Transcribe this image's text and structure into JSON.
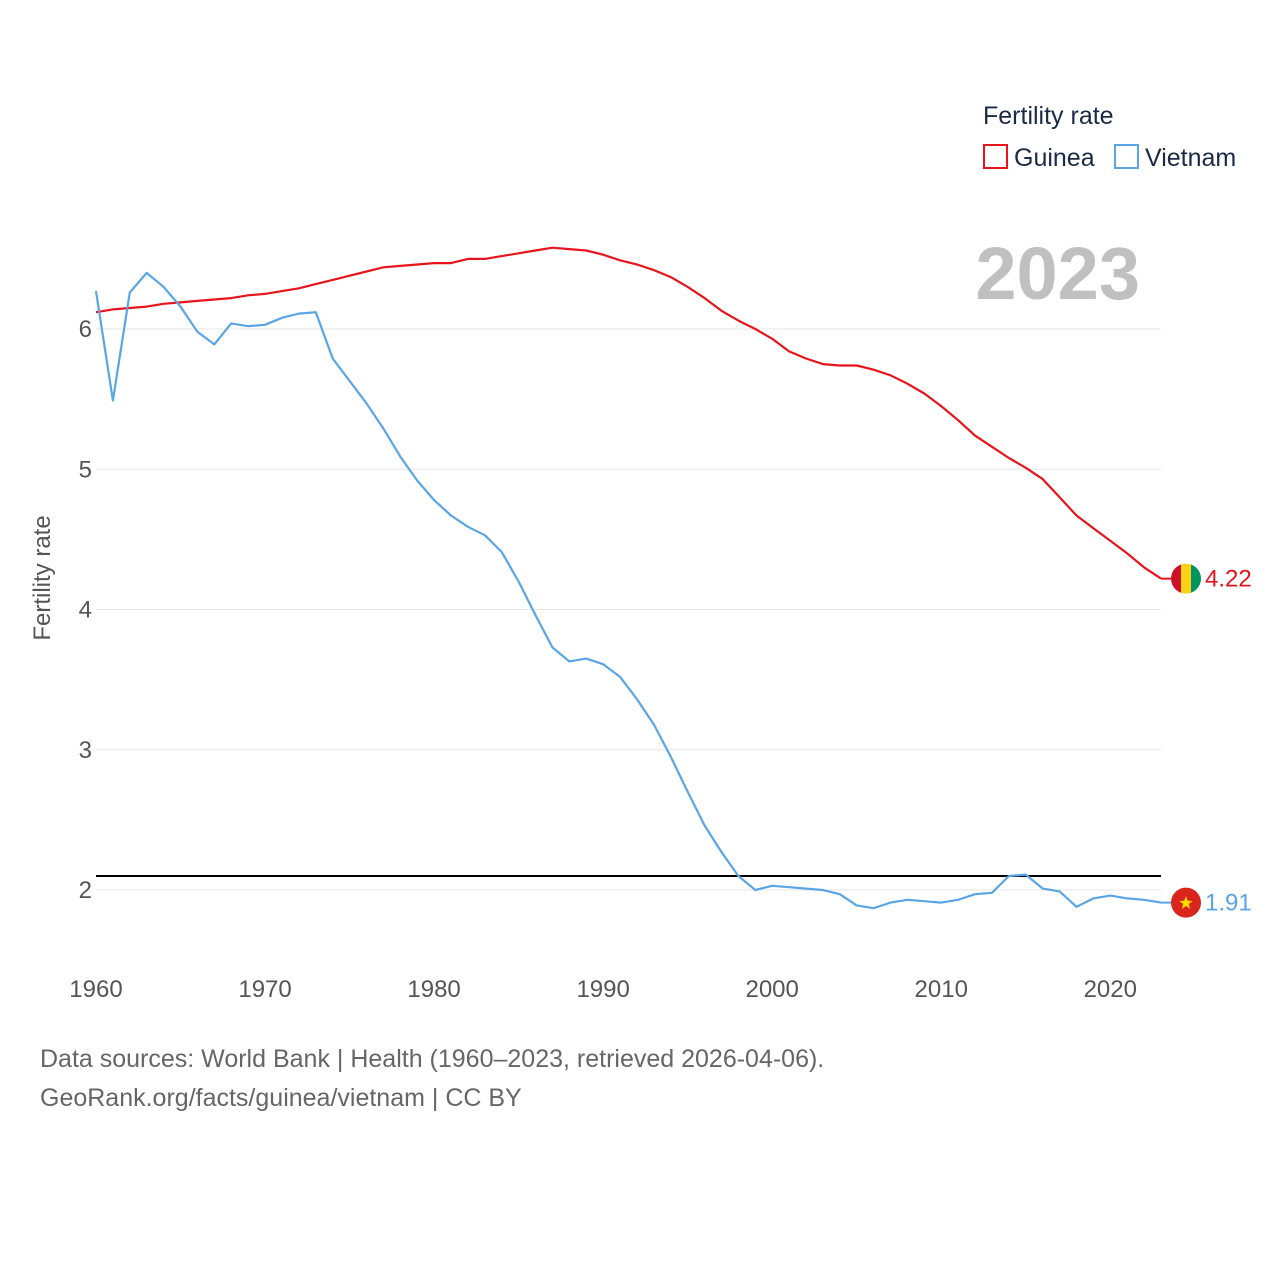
{
  "chart_data": {
    "type": "line",
    "title": "",
    "xlabel": "",
    "ylabel": "Fertility rate",
    "xlim": [
      1960,
      2023
    ],
    "ylim": [
      1.5,
      6.9
    ],
    "x_ticks": [
      "1960",
      "1970",
      "1980",
      "1990",
      "2000",
      "2010",
      "2020"
    ],
    "y_ticks": [
      "2",
      "3",
      "4",
      "5",
      "6"
    ],
    "grid": true,
    "legend": {
      "title": "Fertility rate",
      "position": "top-right"
    },
    "year_label": "2023",
    "reference_line": {
      "value": 2.1
    },
    "x": [
      1960,
      1961,
      1962,
      1963,
      1964,
      1965,
      1966,
      1967,
      1968,
      1969,
      1970,
      1971,
      1972,
      1973,
      1974,
      1975,
      1976,
      1977,
      1978,
      1979,
      1980,
      1981,
      1982,
      1983,
      1984,
      1985,
      1986,
      1987,
      1988,
      1989,
      1990,
      1991,
      1992,
      1993,
      1994,
      1995,
      1996,
      1997,
      1998,
      1999,
      2000,
      2001,
      2002,
      2003,
      2004,
      2005,
      2006,
      2007,
      2008,
      2009,
      2010,
      2011,
      2012,
      2013,
      2014,
      2015,
      2016,
      2017,
      2018,
      2019,
      2020,
      2021,
      2022,
      2023
    ],
    "series": [
      {
        "name": "Guinea",
        "color": "#e8141c",
        "end_label": "4.22",
        "flag": "guinea-flag-icon",
        "values": [
          6.12,
          6.14,
          6.15,
          6.16,
          6.18,
          6.19,
          6.2,
          6.21,
          6.22,
          6.24,
          6.25,
          6.27,
          6.29,
          6.32,
          6.35,
          6.38,
          6.41,
          6.44,
          6.45,
          6.46,
          6.47,
          6.47,
          6.5,
          6.5,
          6.52,
          6.54,
          6.56,
          6.58,
          6.57,
          6.56,
          6.53,
          6.49,
          6.46,
          6.42,
          6.37,
          6.3,
          6.22,
          6.13,
          6.06,
          6.0,
          5.93,
          5.84,
          5.79,
          5.75,
          5.74,
          5.74,
          5.71,
          5.67,
          5.61,
          5.54,
          5.45,
          5.35,
          5.24,
          5.16,
          5.08,
          5.01,
          4.93,
          4.8,
          4.67,
          4.58,
          4.49,
          4.4,
          4.3,
          4.22
        ]
      },
      {
        "name": "Vietnam",
        "color": "#5aa5e6",
        "end_label": "1.91",
        "flag": "vietnam-flag-icon",
        "values": [
          6.27,
          5.49,
          6.26,
          6.4,
          6.3,
          6.16,
          5.98,
          5.89,
          6.04,
          6.02,
          6.03,
          6.08,
          6.11,
          6.12,
          5.79,
          5.63,
          5.47,
          5.29,
          5.09,
          4.92,
          4.78,
          4.67,
          4.59,
          4.53,
          4.41,
          4.2,
          3.96,
          3.73,
          3.63,
          3.65,
          3.61,
          3.52,
          3.36,
          3.18,
          2.95,
          2.7,
          2.46,
          2.27,
          2.1,
          2.0,
          2.03,
          2.02,
          2.01,
          2.0,
          1.97,
          1.89,
          1.87,
          1.91,
          1.93,
          1.92,
          1.91,
          1.93,
          1.97,
          1.98,
          2.1,
          2.11,
          2.01,
          1.99,
          1.88,
          1.94,
          1.96,
          1.94,
          1.93,
          1.91
        ]
      }
    ]
  },
  "footer": {
    "line1": "Data sources: World Bank | Health (1960–2023, retrieved 2026-04-06).",
    "line2": "GeoRank.org/facts/guinea/vietnam | CC BY"
  }
}
